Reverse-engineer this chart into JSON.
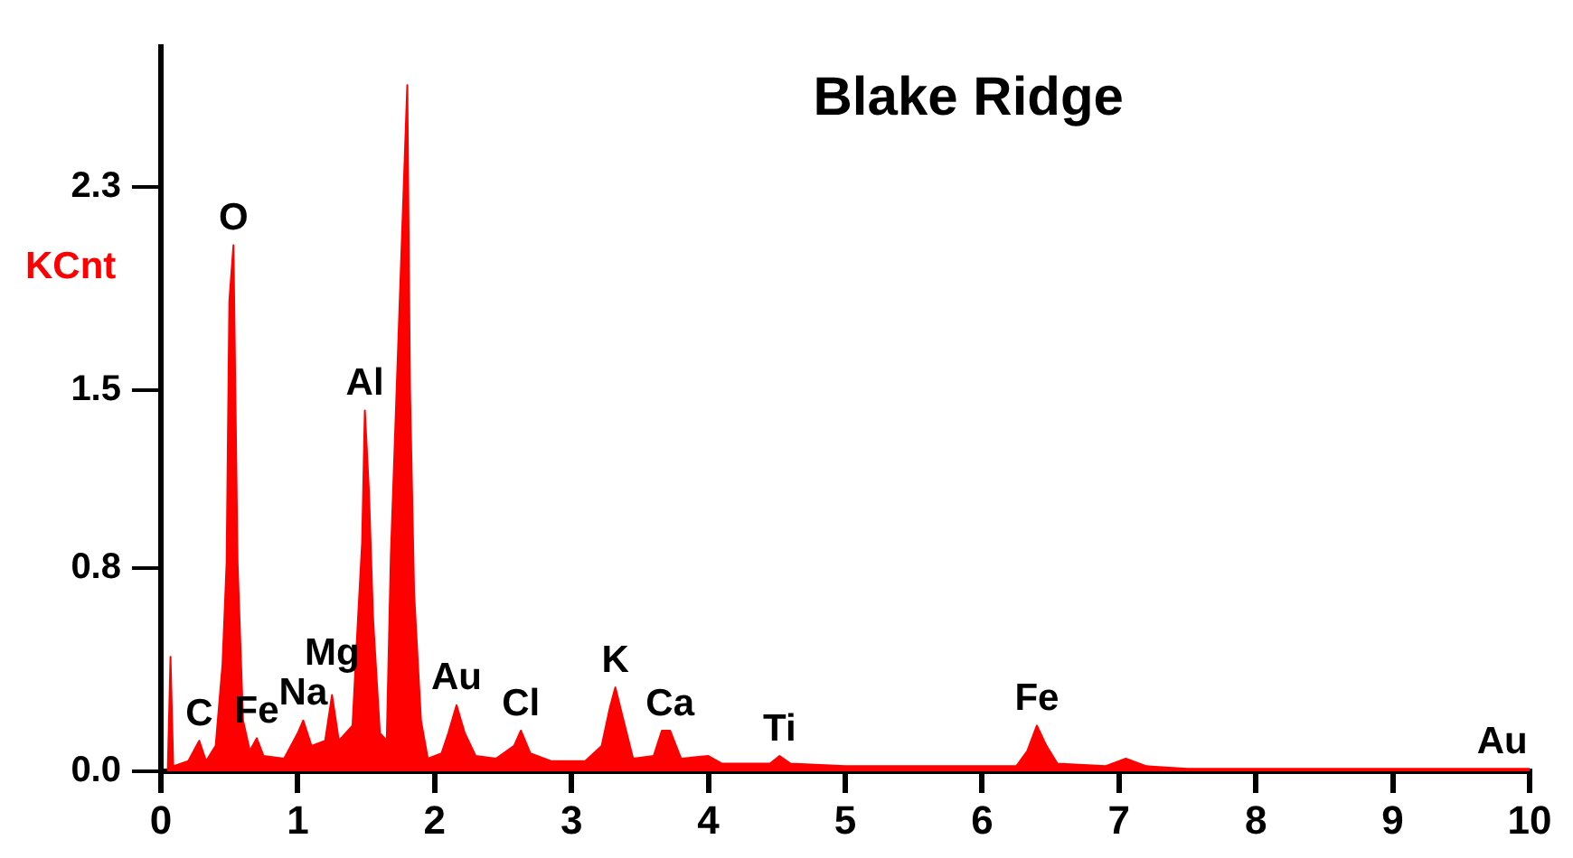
{
  "chart_data": {
    "type": "area",
    "title": "Blake Ridge",
    "ylabel": "KCnt",
    "x": [
      0.05,
      0.07,
      0.09,
      0.2,
      0.28,
      0.33,
      0.4,
      0.45,
      0.48,
      0.5,
      0.53,
      0.56,
      0.6,
      0.65,
      0.7,
      0.75,
      0.9,
      1.0,
      1.04,
      1.1,
      1.2,
      1.25,
      1.3,
      1.4,
      1.44,
      1.47,
      1.49,
      1.52,
      1.55,
      1.6,
      1.65,
      1.68,
      1.72,
      1.78,
      1.8,
      1.82,
      1.85,
      1.9,
      1.95,
      2.05,
      2.1,
      2.16,
      2.22,
      2.3,
      2.45,
      2.58,
      2.63,
      2.7,
      2.85,
      3.1,
      3.22,
      3.28,
      3.32,
      3.38,
      3.45,
      3.6,
      3.66,
      3.72,
      3.8,
      4.0,
      4.1,
      4.45,
      4.52,
      4.6,
      5.0,
      5.5,
      6.0,
      6.25,
      6.33,
      6.4,
      6.47,
      6.55,
      6.9,
      7.05,
      7.2,
      7.5,
      8.5,
      9.0,
      9.8,
      10.0
    ],
    "series": [
      {
        "color": "#ff0000",
        "values": [
          0,
          0.45,
          0.02,
          0.04,
          0.12,
          0.04,
          0.1,
          0.42,
          0.82,
          1.85,
          2.07,
          0.82,
          0.2,
          0.08,
          0.13,
          0.06,
          0.05,
          0.15,
          0.2,
          0.1,
          0.12,
          0.3,
          0.12,
          0.18,
          0.6,
          0.9,
          1.42,
          1.1,
          0.6,
          0.15,
          0.12,
          0.85,
          null,
          null,
          2.7,
          1.5,
          0.7,
          0.2,
          0.05,
          0.07,
          0.15,
          0.26,
          0.15,
          0.06,
          0.05,
          0.1,
          0.16,
          0.07,
          0.04,
          0.04,
          0.1,
          0.25,
          0.33,
          0.2,
          0.05,
          0.06,
          0.16,
          0.16,
          0.05,
          0.06,
          0.03,
          0.03,
          0.06,
          0.03,
          0.02,
          0.02,
          0.02,
          0.02,
          0.08,
          0.18,
          0.1,
          0.03,
          0.02,
          0.05,
          0.02,
          0.01,
          0.01,
          0.01,
          0.01,
          0.01
        ]
      }
    ],
    "xlim": [
      0,
      10
    ],
    "xticks": [
      0,
      1,
      2,
      3,
      4,
      5,
      6,
      7,
      8,
      9,
      10
    ],
    "ylim": [
      0,
      2.85
    ],
    "yticks": [
      {
        "value": 0,
        "label": "0.0"
      },
      {
        "value": 0.8,
        "label": "0.8"
      },
      1.5,
      2.3
    ],
    "grid": false,
    "legend": false,
    "marker": "none",
    "annotations": [
      {
        "text": "C",
        "x": 0.28,
        "y": 0.12
      },
      {
        "text": "O",
        "x": 0.53,
        "y": 2.07
      },
      {
        "text": "Fe",
        "x": 0.7,
        "y": 0.13
      },
      {
        "text": "Na",
        "x": 1.04,
        "y": 0.2
      },
      {
        "text": "Mg",
        "x": 1.25,
        "y": 0.3
      },
      {
        "text": "Al",
        "x": 1.49,
        "y": 1.42
      },
      {
        "text": "Au",
        "x": 2.16,
        "y": 0.26
      },
      {
        "text": "Cl",
        "x": 2.63,
        "y": 0.16
      },
      {
        "text": "K",
        "x": 3.32,
        "y": 0.33
      },
      {
        "text": "Ca",
        "x": 3.72,
        "y": 0.16
      },
      {
        "text": "Ti",
        "x": 4.52,
        "y": 0.06
      },
      {
        "text": "Fe",
        "x": 6.4,
        "y": 0.18
      },
      {
        "text": "Au",
        "x": 9.8,
        "y": 0.01
      }
    ]
  }
}
